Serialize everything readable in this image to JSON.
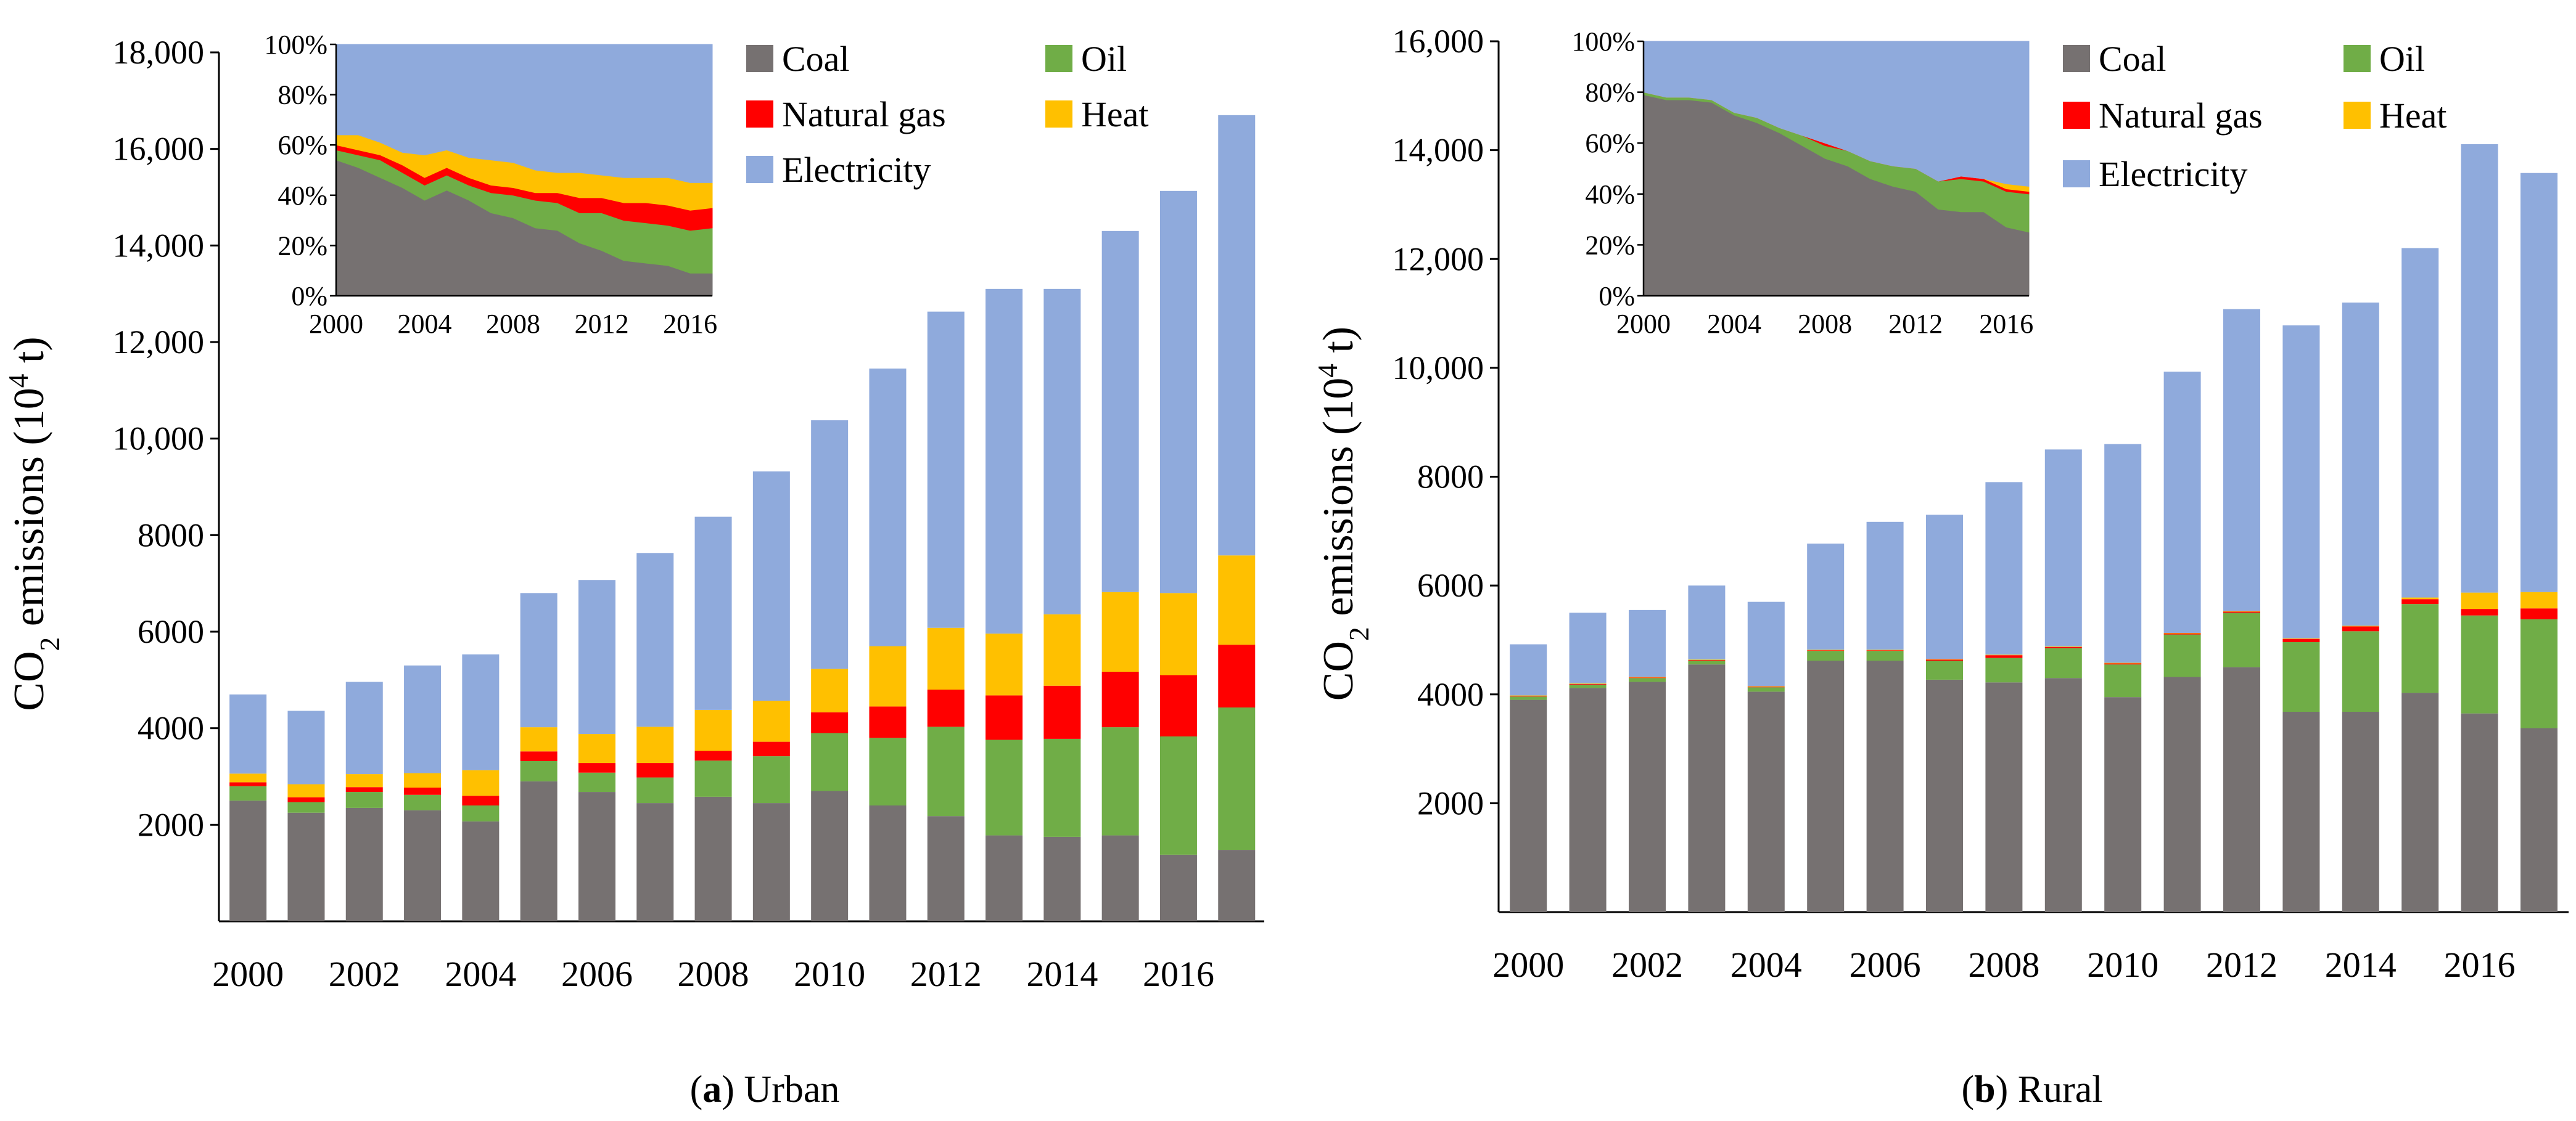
{
  "chart_data": [
    {
      "type": "bar",
      "stacked": true,
      "panel_letter": "a",
      "panel_label": "Urban",
      "ylabel": "CO2 emissions (10^4 t)",
      "ylabel_text": {
        "pre": "CO",
        "sub": "2",
        "mid": " emissions (10",
        "sup": "4",
        "post": " t)"
      },
      "ylim": [
        0,
        18000
      ],
      "yticks": [
        2000,
        4000,
        6000,
        8000,
        10000,
        12000,
        14000,
        16000,
        18000
      ],
      "ytick_labels": [
        "2000",
        "4000",
        "6000",
        "8000",
        "10,000",
        "12,000",
        "14,000",
        "16,000",
        "18,000"
      ],
      "categories": [
        "2000",
        "2001",
        "2002",
        "2003",
        "2004",
        "2005",
        "2006",
        "2007",
        "2008",
        "2009",
        "2010",
        "2011",
        "2012",
        "2013",
        "2014",
        "2015",
        "2016",
        "2017"
      ],
      "xtick_labels": [
        "2000",
        "2002",
        "2004",
        "2006",
        "2008",
        "2010",
        "2012",
        "2014",
        "2016"
      ],
      "series": [
        {
          "name": "Coal",
          "color": "#767171",
          "values": [
            2500,
            2250,
            2350,
            2300,
            2070,
            2900,
            2680,
            2450,
            2580,
            2450,
            2700,
            2400,
            2180,
            1780,
            1750,
            1780,
            1380,
            1480
          ]
        },
        {
          "name": "Oil",
          "color": "#70ad47",
          "values": [
            300,
            220,
            330,
            320,
            330,
            420,
            400,
            530,
            750,
            970,
            1200,
            1400,
            1850,
            1980,
            2030,
            2240,
            2450,
            2950
          ]
        },
        {
          "name": "Natural gas",
          "color": "#ff0000",
          "values": [
            80,
            100,
            100,
            150,
            200,
            200,
            200,
            300,
            200,
            300,
            430,
            650,
            770,
            920,
            1100,
            1150,
            1270,
            1300
          ]
        },
        {
          "name": "Heat",
          "color": "#ffc000",
          "values": [
            180,
            270,
            270,
            300,
            530,
            500,
            600,
            750,
            850,
            850,
            900,
            1250,
            1280,
            1280,
            1480,
            1650,
            1700,
            1850
          ]
        },
        {
          "name": "Electricity",
          "color": "#8faadc",
          "values": [
            1640,
            1520,
            1910,
            2230,
            2400,
            2780,
            3190,
            3600,
            4000,
            4750,
            5150,
            5750,
            6550,
            7140,
            6740,
            7480,
            8330,
            9120
          ]
        }
      ],
      "inset": {
        "type": "area",
        "stacked": true,
        "normalized": true,
        "ylim": [
          0,
          100
        ],
        "ytick_labels": [
          "0%",
          "20%",
          "40%",
          "60%",
          "80%",
          "100%"
        ],
        "xtick_labels": [
          "2000",
          "2004",
          "2008",
          "2012",
          "2016"
        ],
        "x": [
          2000,
          2001,
          2002,
          2003,
          2004,
          2005,
          2006,
          2007,
          2008,
          2009,
          2010,
          2011,
          2012,
          2013,
          2014,
          2015,
          2016,
          2017
        ],
        "series": [
          {
            "name": "Coal",
            "values": [
              54,
              51,
              47,
              43,
              38,
              42,
              38,
              33,
              31,
              27,
              26,
              21,
              18,
              14,
              13,
              12,
              9,
              9
            ]
          },
          {
            "name": "Oil",
            "values": [
              4,
              5,
              7,
              6,
              6,
              6,
              6,
              8,
              9,
              11,
              11,
              12,
              15,
              16,
              16,
              16,
              17,
              18
            ]
          },
          {
            "name": "Natural gas",
            "values": [
              2,
              2,
              2,
              3,
              3,
              3,
              3,
              3,
              3,
              3,
              4,
              6,
              6,
              7,
              8,
              8,
              8,
              8
            ]
          },
          {
            "name": "Heat",
            "values": [
              4,
              6,
              5,
              5,
              9,
              7,
              8,
              10,
              10,
              9,
              8,
              10,
              9,
              10,
              10,
              11,
              11,
              10
            ]
          },
          {
            "name": "Electricity",
            "values": [
              36,
              36,
              39,
              43,
              44,
              42,
              45,
              46,
              47,
              50,
              51,
              51,
              52,
              53,
              53,
              53,
              55,
              55
            ]
          }
        ]
      }
    },
    {
      "type": "bar",
      "stacked": true,
      "panel_letter": "b",
      "panel_label": "Rural",
      "ylabel": "CO2 emissions (10^4 t)",
      "ylabel_text": {
        "pre": "CO",
        "sub": "2",
        "mid": " emissions (10",
        "sup": "4",
        "post": " t)"
      },
      "ylim": [
        0,
        16000
      ],
      "yticks": [
        2000,
        4000,
        6000,
        8000,
        10000,
        12000,
        14000,
        16000
      ],
      "ytick_labels": [
        "2000",
        "4000",
        "6000",
        "8000",
        "10,000",
        "12,000",
        "14,000",
        "16,000"
      ],
      "categories": [
        "2000",
        "2001",
        "2002",
        "2003",
        "2004",
        "2005",
        "2006",
        "2007",
        "2008",
        "2009",
        "2010",
        "2011",
        "2012",
        "2013",
        "2014",
        "2015",
        "2016",
        "2017"
      ],
      "xtick_labels": [
        "2000",
        "2002",
        "2004",
        "2006",
        "2008",
        "2010",
        "2012",
        "2014",
        "2016"
      ],
      "series": [
        {
          "name": "Coal",
          "color": "#767171",
          "values": [
            3900,
            4120,
            4230,
            4550,
            4050,
            4620,
            4620,
            4270,
            4220,
            4300,
            3950,
            4320,
            4500,
            3680,
            3680,
            4030,
            3650,
            3380
          ]
        },
        {
          "name": "Oil",
          "color": "#70ad47",
          "values": [
            60,
            60,
            70,
            70,
            80,
            180,
            180,
            350,
            450,
            550,
            600,
            780,
            1000,
            1280,
            1480,
            1630,
            1800,
            2000
          ]
        },
        {
          "name": "Natural gas",
          "color": "#ff0000",
          "values": [
            10,
            10,
            10,
            10,
            10,
            10,
            10,
            20,
            50,
            20,
            20,
            20,
            20,
            60,
            90,
            90,
            120,
            200
          ]
        },
        {
          "name": "Heat",
          "color": "#ffc000",
          "values": [
            10,
            10,
            10,
            10,
            10,
            10,
            10,
            10,
            10,
            10,
            10,
            10,
            10,
            10,
            10,
            30,
            300,
            300
          ]
        },
        {
          "name": "Electricity",
          "color": "#8faadc",
          "values": [
            940,
            1300,
            1230,
            1360,
            1550,
            1950,
            2350,
            2650,
            3170,
            3620,
            4020,
            4800,
            5550,
            5750,
            5940,
            6420,
            8240,
            7700
          ]
        }
      ],
      "inset": {
        "type": "area",
        "stacked": true,
        "normalized": true,
        "ylim": [
          0,
          100
        ],
        "ytick_labels": [
          "0%",
          "20%",
          "40%",
          "60%",
          "80%",
          "100%"
        ],
        "xtick_labels": [
          "2000",
          "2004",
          "2008",
          "2012",
          "2016"
        ],
        "x": [
          2000,
          2001,
          2002,
          2003,
          2004,
          2005,
          2006,
          2007,
          2008,
          2009,
          2010,
          2011,
          2012,
          2013,
          2014,
          2015,
          2016,
          2017
        ],
        "series": [
          {
            "name": "Coal",
            "values": [
              79,
              77,
              77,
              76,
              71,
              68,
              64,
              59,
              54,
              51,
              46,
              43,
              41,
              34,
              33,
              33,
              27,
              25
            ]
          },
          {
            "name": "Oil",
            "values": [
              1,
              1,
              1,
              1,
              1,
              2,
              2,
              4,
              5,
              6,
              7,
              8,
              9,
              11,
              13,
              12,
              14,
              15
            ]
          },
          {
            "name": "Natural gas",
            "values": [
              0,
              0,
              0,
              0,
              0,
              0,
              0,
              0,
              1,
              0,
              0,
              0,
              0,
              0,
              1,
              1,
              1,
              1
            ]
          },
          {
            "name": "Heat",
            "values": [
              0,
              0,
              0,
              0,
              0,
              0,
              0,
              0,
              0,
              0,
              0,
              0,
              0,
              0,
              0,
              0,
              2,
              2
            ]
          },
          {
            "name": "Electricity",
            "values": [
              20,
              22,
              22,
              23,
              28,
              30,
              34,
              37,
              40,
              43,
              47,
              49,
              50,
              55,
              53,
              54,
              56,
              57
            ]
          }
        ]
      }
    }
  ]
}
